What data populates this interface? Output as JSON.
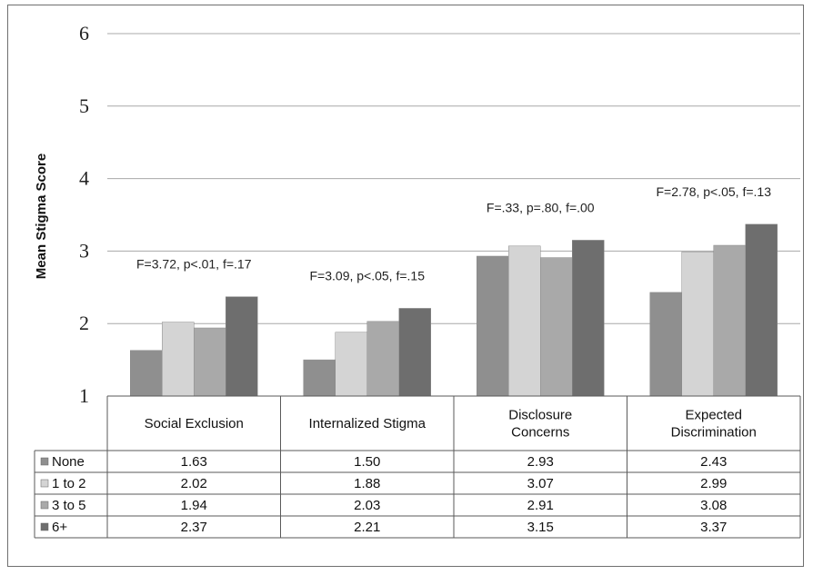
{
  "chart_data": {
    "type": "bar",
    "ylabel": "Mean Stigma Score",
    "ylim": [
      1,
      6
    ],
    "yticks": [
      "1",
      "2",
      "3",
      "4",
      "5",
      "6"
    ],
    "grid": true,
    "categories": [
      [
        "Social Exclusion"
      ],
      [
        "Internalized Stigma"
      ],
      [
        "Disclosure",
        "Concerns"
      ],
      [
        "Expected",
        "Discrimination"
      ]
    ],
    "series": [
      {
        "name": "None",
        "values": [
          1.63,
          1.5,
          2.93,
          2.43
        ],
        "labels": [
          "1.63",
          "1.50",
          "2.93",
          "2.43"
        ],
        "color": "#8f8f8f"
      },
      {
        "name": "1 to 2",
        "values": [
          2.02,
          1.88,
          3.07,
          2.99
        ],
        "labels": [
          "2.02",
          "1.88",
          "3.07",
          "2.99"
        ],
        "color": "#d4d4d4"
      },
      {
        "name": "3 to 5",
        "values": [
          1.94,
          2.03,
          2.91,
          3.08
        ],
        "labels": [
          "1.94",
          "2.03",
          "2.91",
          "3.08"
        ],
        "color": "#a9a9a9"
      },
      {
        "name": "6+",
        "values": [
          2.37,
          2.21,
          3.15,
          3.37
        ],
        "labels": [
          "2.37",
          "2.21",
          "3.15",
          "3.37"
        ],
        "color": "#6e6e6e"
      }
    ],
    "annotations": [
      "F=3.72, p<.01, f=.17",
      "F=3.09, p<.05, f=.15",
      "F=.33, p=.80, f=.00",
      "F=2.78, p<.05, f=.13"
    ],
    "legend": "data-table"
  }
}
